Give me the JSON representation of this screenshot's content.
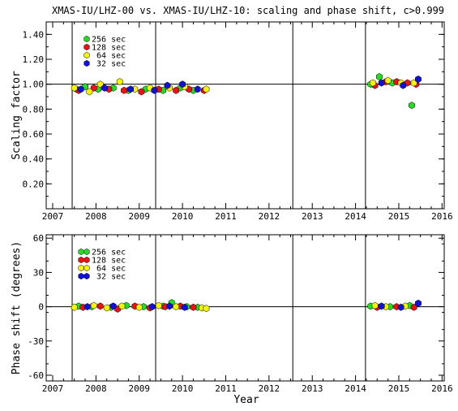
{
  "title": "XMAS-IU/LHZ-00 vs. XMAS-IU/LHZ-10: scaling and phase shift, c>0.999",
  "xlabel": "Year",
  "legend": [
    {
      "label": "256 sec",
      "color": "#22dd22"
    },
    {
      "label": "128 sec",
      "color": "#ee1111"
    },
    {
      "label": " 64 sec",
      "color": "#f5f500"
    },
    {
      "label": " 32 sec",
      "color": "#1111dd"
    }
  ],
  "chart_data": [
    {
      "type": "scatter",
      "ylabel": "Scaling factor",
      "xlim": [
        2006.85,
        2016.05
      ],
      "ylim": [
        0.0,
        1.5
      ],
      "xticks": [
        "2007",
        "2008",
        "2009",
        "2010",
        "2011",
        "2012",
        "2013",
        "2014",
        "2015",
        "2016"
      ],
      "yticks": [
        "0.20",
        "0.40",
        "0.60",
        "0.80",
        "1.00",
        "1.20",
        "1.40"
      ],
      "reference_line": 1.0,
      "vertical_lines": [
        2007.45,
        2009.38,
        2012.55,
        2014.23
      ],
      "series": [
        {
          "name": "256 sec",
          "points": [
            [
              2007.55,
              0.96
            ],
            [
              2007.75,
              0.98
            ],
            [
              2008.05,
              0.96
            ],
            [
              2008.4,
              0.97
            ],
            [
              2008.75,
              0.95
            ],
            [
              2009.15,
              0.96
            ],
            [
              2009.55,
              0.95
            ],
            [
              2009.95,
              0.97
            ],
            [
              2010.25,
              0.95
            ],
            [
              2014.35,
              1.0
            ],
            [
              2014.55,
              1.06
            ],
            [
              2014.85,
              1.01
            ],
            [
              2015.3,
              0.83
            ]
          ]
        },
        {
          "name": "128 sec",
          "points": [
            [
              2007.6,
              0.95
            ],
            [
              2007.95,
              0.97
            ],
            [
              2008.3,
              0.96
            ],
            [
              2008.65,
              0.95
            ],
            [
              2009.05,
              0.94
            ],
            [
              2009.45,
              0.96
            ],
            [
              2009.85,
              0.95
            ],
            [
              2010.15,
              0.96
            ],
            [
              2010.5,
              0.95
            ],
            [
              2014.45,
              0.99
            ],
            [
              2014.7,
              1.02
            ],
            [
              2014.95,
              1.02
            ],
            [
              2015.2,
              1.01
            ],
            [
              2015.4,
              1.0
            ]
          ]
        },
        {
          "name": " 64 sec",
          "points": [
            [
              2007.5,
              0.97
            ],
            [
              2007.85,
              0.94
            ],
            [
              2008.1,
              1.0
            ],
            [
              2008.55,
              1.02
            ],
            [
              2008.9,
              0.96
            ],
            [
              2009.25,
              0.97
            ],
            [
              2009.7,
              0.97
            ],
            [
              2010.05,
              0.98
            ],
            [
              2010.55,
              0.96
            ],
            [
              2014.4,
              1.01
            ],
            [
              2014.75,
              1.03
            ],
            [
              2015.05,
              1.01
            ],
            [
              2015.35,
              1.01
            ]
          ]
        },
        {
          "name": " 32 sec",
          "points": [
            [
              2007.65,
              0.96
            ],
            [
              2008.2,
              0.97
            ],
            [
              2008.8,
              0.96
            ],
            [
              2009.35,
              0.95
            ],
            [
              2009.65,
              0.99
            ],
            [
              2010.0,
              1.0
            ],
            [
              2010.35,
              0.96
            ],
            [
              2014.6,
              1.01
            ],
            [
              2015.1,
              0.99
            ],
            [
              2015.45,
              1.04
            ]
          ]
        }
      ]
    },
    {
      "type": "scatter",
      "ylabel": "Phase shift (degrees)",
      "xlim": [
        2006.85,
        2016.05
      ],
      "ylim": [
        -65,
        63
      ],
      "xticks": [
        "2007",
        "2008",
        "2009",
        "2010",
        "2011",
        "2012",
        "2013",
        "2014",
        "2015",
        "2016"
      ],
      "yticks": [
        "-60",
        "-30",
        "0",
        "30",
        "60"
      ],
      "reference_line": 0,
      "vertical_lines": [
        2007.45,
        2009.38,
        2012.55,
        2014.23
      ],
      "series": [
        {
          "name": "256 sec",
          "points": [
            [
              2007.6,
              0.5
            ],
            [
              2007.9,
              0.0
            ],
            [
              2008.35,
              -0.5
            ],
            [
              2008.7,
              1.0
            ],
            [
              2009.1,
              0.0
            ],
            [
              2009.55,
              0.5
            ],
            [
              2009.75,
              3.5
            ],
            [
              2010.1,
              0.0
            ],
            [
              2010.35,
              -0.5
            ],
            [
              2014.35,
              0.5
            ],
            [
              2014.8,
              0.0
            ],
            [
              2015.25,
              1.0
            ]
          ]
        },
        {
          "name": "128 sec",
          "points": [
            [
              2007.7,
              -0.5
            ],
            [
              2008.1,
              0.5
            ],
            [
              2008.5,
              -2.0
            ],
            [
              2008.9,
              0.5
            ],
            [
              2009.25,
              -1.0
            ],
            [
              2009.6,
              0.0
            ],
            [
              2009.95,
              0.5
            ],
            [
              2010.25,
              -0.5
            ],
            [
              2014.5,
              -0.5
            ],
            [
              2014.95,
              0.0
            ],
            [
              2015.35,
              -0.5
            ]
          ]
        },
        {
          "name": " 64 sec",
          "points": [
            [
              2007.5,
              -0.5
            ],
            [
              2007.95,
              1.0
            ],
            [
              2008.25,
              -1.0
            ],
            [
              2008.6,
              0.5
            ],
            [
              2009.0,
              -0.5
            ],
            [
              2009.45,
              1.0
            ],
            [
              2009.85,
              0.0
            ],
            [
              2010.45,
              -1.0
            ],
            [
              2010.55,
              -1.5
            ],
            [
              2014.45,
              1.0
            ],
            [
              2014.7,
              0.0
            ],
            [
              2015.15,
              0.5
            ]
          ]
        },
        {
          "name": " 32 sec",
          "points": [
            [
              2007.8,
              0.0
            ],
            [
              2008.4,
              0.5
            ],
            [
              2009.3,
              0.0
            ],
            [
              2009.7,
              0.5
            ],
            [
              2010.05,
              -0.5
            ],
            [
              2014.6,
              0.5
            ],
            [
              2015.05,
              -0.5
            ],
            [
              2015.45,
              3.0
            ]
          ]
        }
      ]
    }
  ]
}
